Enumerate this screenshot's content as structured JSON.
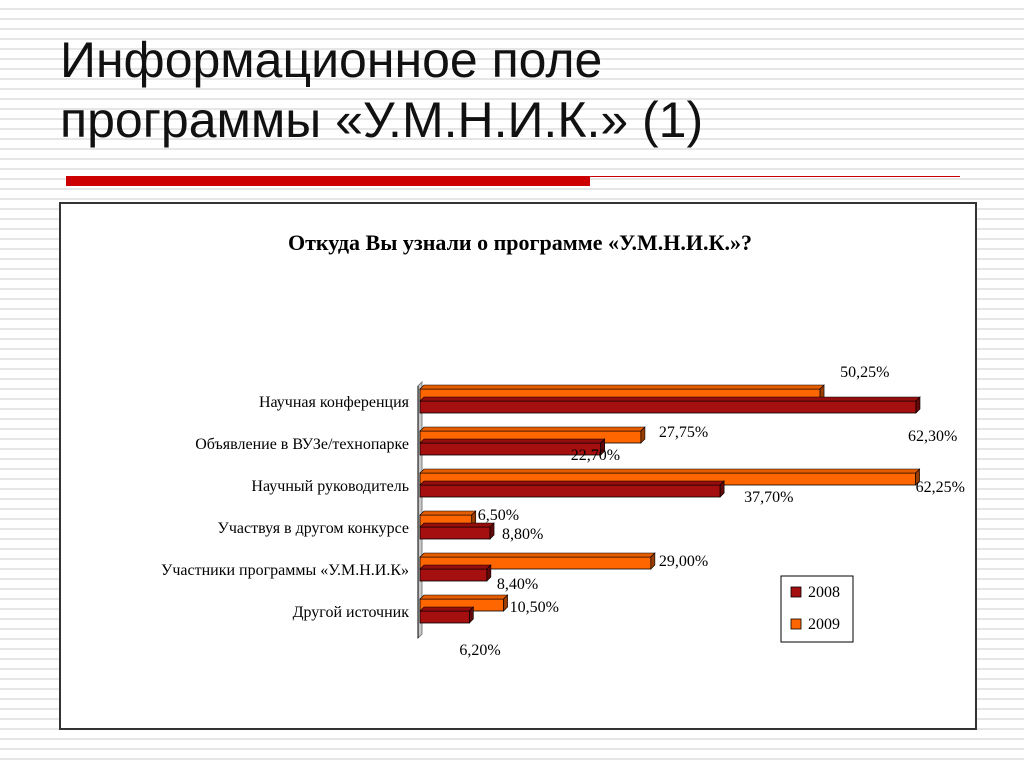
{
  "slide": {
    "title_line1": "Информационное поле",
    "title_line2": "программы «У.М.Н.И.К.» (1)"
  },
  "colors": {
    "accent_rule": "#cc0000",
    "series_2008": "#a50f0f",
    "series_2009": "#ff6600"
  },
  "chart_data": {
    "type": "bar",
    "orientation": "horizontal",
    "title": "Откуда Вы узнали о программе «У.М.Н.И.К.»?",
    "categories": [
      "Научная конференция",
      "Объявление в ВУЗе/технопарке",
      "Научный руководитель",
      "Участвуя в другом конкурсе",
      "Участники программы «У.М.Н.И.К»",
      "Другой источник"
    ],
    "series": [
      {
        "name": "2008",
        "values": [
          62.3,
          22.7,
          37.7,
          8.8,
          8.4,
          6.2
        ],
        "labels": [
          "62,30%",
          "22,70%",
          "37,70%",
          "8,80%",
          "8,40%",
          "6,20%"
        ]
      },
      {
        "name": "2009",
        "values": [
          50.25,
          27.75,
          62.25,
          6.5,
          29.0,
          10.5
        ],
        "labels": [
          "50,25%",
          "27,75%",
          "62,25%",
          "6,50%",
          "29,00%",
          "10,50%"
        ]
      }
    ],
    "xlim": [
      0,
      62.3
    ],
    "legend_position": "bottom-right",
    "grid": false
  }
}
